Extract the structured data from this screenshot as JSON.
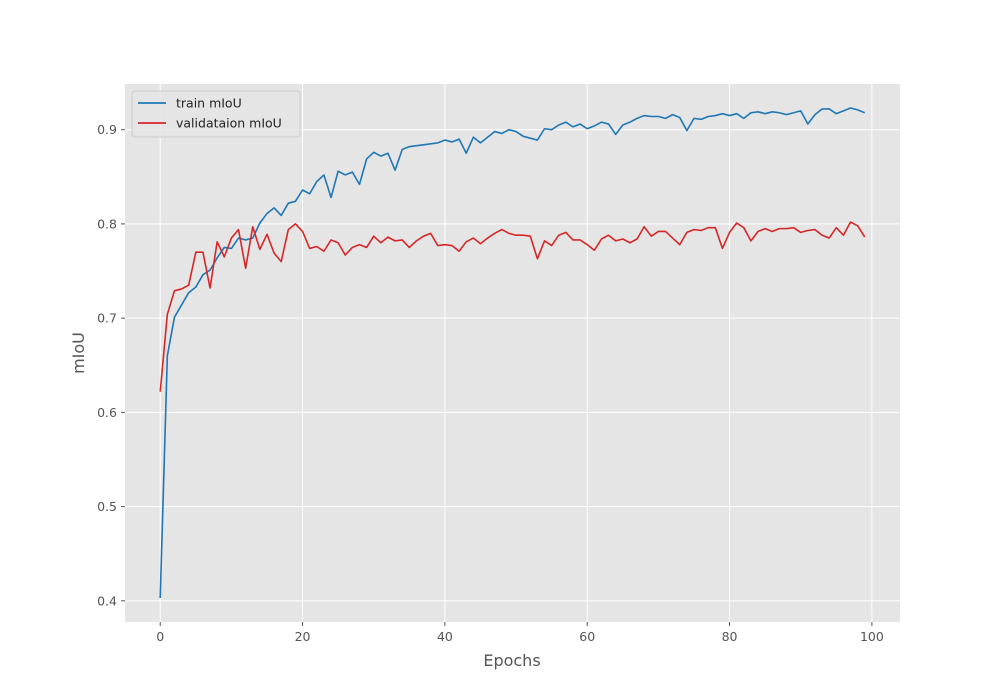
{
  "chart_data": {
    "type": "line",
    "title": "",
    "xlabel": "Epochs",
    "ylabel": "mIoU",
    "xlim": [
      -4.95,
      103.95
    ],
    "ylim": [
      0.3775,
      0.9485
    ],
    "xticks": [
      0,
      20,
      40,
      60,
      80,
      100
    ],
    "yticks": [
      0.4,
      0.5,
      0.6,
      0.7,
      0.8,
      0.9
    ],
    "xtick_labels": [
      "0",
      "20",
      "40",
      "60",
      "80",
      "100"
    ],
    "ytick_labels": [
      "0.4",
      "0.5",
      "0.6",
      "0.7",
      "0.8",
      "0.9"
    ],
    "grid": true,
    "legend_position": "top-left",
    "x": [
      0,
      1,
      2,
      3,
      4,
      5,
      6,
      7,
      8,
      9,
      10,
      11,
      12,
      13,
      14,
      15,
      16,
      17,
      18,
      19,
      20,
      21,
      22,
      23,
      24,
      25,
      26,
      27,
      28,
      29,
      30,
      31,
      32,
      33,
      34,
      35,
      36,
      37,
      38,
      39,
      40,
      41,
      42,
      43,
      44,
      45,
      46,
      47,
      48,
      49,
      50,
      51,
      52,
      53,
      54,
      55,
      56,
      57,
      58,
      59,
      60,
      61,
      62,
      63,
      64,
      65,
      66,
      67,
      68,
      69,
      70,
      71,
      72,
      73,
      74,
      75,
      76,
      77,
      78,
      79,
      80,
      81,
      82,
      83,
      84,
      85,
      86,
      87,
      88,
      89,
      90,
      91,
      92,
      93,
      94,
      95,
      96,
      97,
      98,
      99
    ],
    "series": [
      {
        "name": "train mIoU",
        "color": "#1f77b4",
        "values": [
          0.403,
          0.66,
          0.701,
          0.714,
          0.727,
          0.733,
          0.746,
          0.751,
          0.764,
          0.775,
          0.774,
          0.785,
          0.783,
          0.785,
          0.801,
          0.811,
          0.817,
          0.809,
          0.822,
          0.824,
          0.836,
          0.832,
          0.845,
          0.852,
          0.828,
          0.856,
          0.852,
          0.855,
          0.842,
          0.869,
          0.876,
          0.872,
          0.875,
          0.857,
          0.879,
          0.882,
          0.883,
          0.884,
          0.885,
          0.886,
          0.889,
          0.887,
          0.89,
          0.875,
          0.892,
          0.886,
          0.892,
          0.898,
          0.896,
          0.9,
          0.898,
          0.893,
          0.891,
          0.889,
          0.901,
          0.9,
          0.905,
          0.908,
          0.903,
          0.906,
          0.901,
          0.904,
          0.908,
          0.906,
          0.895,
          0.905,
          0.908,
          0.912,
          0.915,
          0.914,
          0.914,
          0.912,
          0.916,
          0.913,
          0.899,
          0.912,
          0.911,
          0.914,
          0.915,
          0.917,
          0.915,
          0.917,
          0.912,
          0.918,
          0.919,
          0.917,
          0.919,
          0.918,
          0.916,
          0.918,
          0.92,
          0.906,
          0.916,
          0.922,
          0.922,
          0.917,
          0.92,
          0.923,
          0.921,
          0.918
        ]
      },
      {
        "name": "validataion mIoU",
        "color": "#d62728",
        "values": [
          0.622,
          0.704,
          0.729,
          0.731,
          0.735,
          0.77,
          0.77,
          0.732,
          0.781,
          0.765,
          0.785,
          0.794,
          0.753,
          0.797,
          0.773,
          0.789,
          0.769,
          0.76,
          0.794,
          0.8,
          0.792,
          0.774,
          0.776,
          0.771,
          0.783,
          0.78,
          0.767,
          0.775,
          0.778,
          0.775,
          0.787,
          0.78,
          0.786,
          0.782,
          0.783,
          0.775,
          0.782,
          0.787,
          0.79,
          0.777,
          0.778,
          0.777,
          0.771,
          0.781,
          0.785,
          0.779,
          0.785,
          0.79,
          0.794,
          0.79,
          0.788,
          0.788,
          0.787,
          0.763,
          0.782,
          0.777,
          0.788,
          0.791,
          0.783,
          0.783,
          0.778,
          0.772,
          0.784,
          0.788,
          0.782,
          0.784,
          0.78,
          0.784,
          0.797,
          0.787,
          0.792,
          0.792,
          0.785,
          0.778,
          0.791,
          0.794,
          0.793,
          0.796,
          0.796,
          0.774,
          0.791,
          0.801,
          0.796,
          0.782,
          0.792,
          0.795,
          0.792,
          0.795,
          0.795,
          0.796,
          0.791,
          0.793,
          0.794,
          0.788,
          0.785,
          0.796,
          0.788,
          0.802,
          0.798,
          0.786
        ]
      }
    ]
  }
}
